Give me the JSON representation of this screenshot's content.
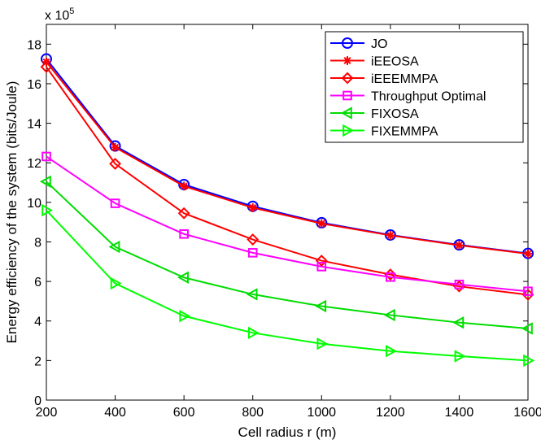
{
  "chart_data": {
    "type": "line",
    "xlabel": "Cell radius r (m)",
    "ylabel": "Energy efficiency of the system  (bits/Joule)",
    "exponent_label": {
      "base": "x 10",
      "power": "5"
    },
    "x": [
      200,
      400,
      600,
      800,
      1000,
      1200,
      1400,
      1600
    ],
    "xlim": [
      200,
      1600
    ],
    "ylim": [
      0,
      19
    ],
    "x_ticks": [
      200,
      400,
      600,
      800,
      1000,
      1200,
      1400,
      1600
    ],
    "y_ticks": [
      0,
      2,
      4,
      6,
      8,
      10,
      12,
      14,
      16,
      18
    ],
    "grid": false,
    "legend_position": "top-right",
    "series": [
      {
        "name": "JO",
        "color": "#0000ff",
        "marker": "circle",
        "values": [
          17.25,
          12.85,
          10.9,
          9.8,
          8.97,
          8.35,
          7.85,
          7.42
        ]
      },
      {
        "name": "iEEOSA",
        "color": "#ff0000",
        "marker": "asterisk",
        "values": [
          17.1,
          12.78,
          10.82,
          9.73,
          8.93,
          8.33,
          7.83,
          7.4
        ]
      },
      {
        "name": "iEEEMMPA",
        "color": "#ff0000",
        "marker": "diamond",
        "values": [
          16.85,
          11.95,
          9.45,
          8.12,
          7.05,
          6.35,
          5.75,
          5.33
        ]
      },
      {
        "name": "Throughput Optimal",
        "color": "#ff00ff",
        "marker": "square",
        "values": [
          12.32,
          9.95,
          8.4,
          7.45,
          6.75,
          6.22,
          5.85,
          5.5
        ]
      },
      {
        "name": "FIXOSA",
        "color": "#00dd00",
        "marker": "triangle-left",
        "values": [
          11.05,
          7.75,
          6.2,
          5.35,
          4.75,
          4.3,
          3.92,
          3.62
        ]
      },
      {
        "name": "FIXEMMPA",
        "color": "#00ff00",
        "marker": "triangle-right",
        "values": [
          9.6,
          5.9,
          4.25,
          3.4,
          2.85,
          2.48,
          2.22,
          2.0
        ]
      }
    ]
  }
}
